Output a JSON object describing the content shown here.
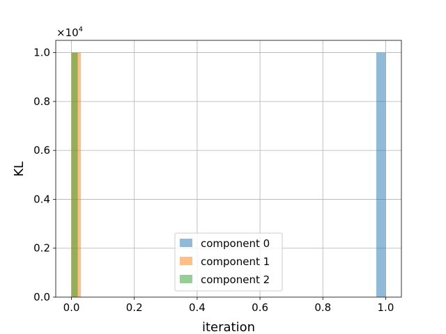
{
  "chart_data": {
    "type": "bar",
    "title": "",
    "xlabel": "iteration",
    "ylabel": "KL",
    "y_offset_label": "×10",
    "y_offset_exponent": "4",
    "xlim": [
      -0.05,
      1.05
    ],
    "ylim": [
      0,
      1.05
    ],
    "x_ticks": [
      0.0,
      0.2,
      0.4,
      0.6,
      0.8,
      1.0
    ],
    "x_tick_labels": [
      "0.0",
      "0.2",
      "0.4",
      "0.6",
      "0.8",
      "1.0"
    ],
    "y_ticks": [
      0.0,
      0.2,
      0.4,
      0.6,
      0.8,
      1.0
    ],
    "y_tick_labels": [
      "0.0",
      "0.2",
      "0.4",
      "0.6",
      "0.8",
      "1.0"
    ],
    "grid": true,
    "legend_position": "bottom-center",
    "series": [
      {
        "name": "component 0",
        "color": "#1f77b4",
        "bars": [
          {
            "x0": 0.97,
            "x1": 1.0,
            "value": 1.0
          }
        ]
      },
      {
        "name": "component 1",
        "color": "#ff7f0e",
        "bars": [
          {
            "x0": 0.0,
            "x1": 0.03,
            "value": 1.0
          }
        ]
      },
      {
        "name": "component 2",
        "color": "#2ca02c",
        "bars": [
          {
            "x0": 0.0,
            "x1": 0.02,
            "value": 1.0
          }
        ]
      }
    ],
    "bar_opacity": 0.5
  }
}
